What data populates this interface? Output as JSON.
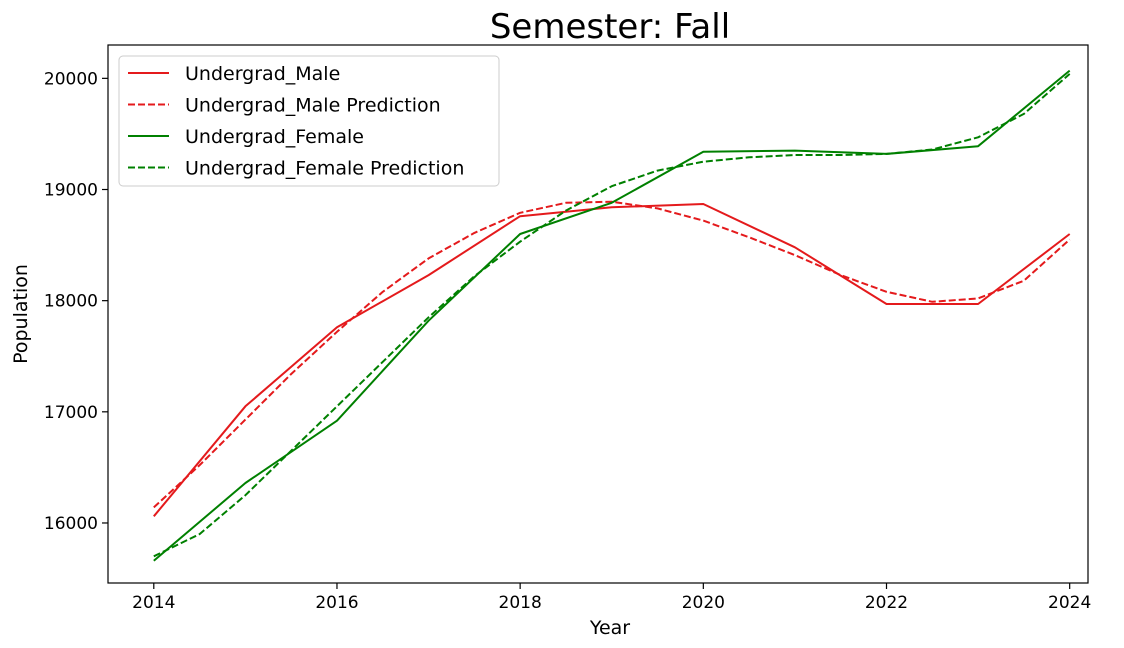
{
  "chart_data": {
    "type": "line",
    "title": "Semester: Fall",
    "xlabel": "Year",
    "ylabel": "Population",
    "xlim": [
      2013.5,
      2024.2
    ],
    "ylim": [
      15460,
      20300
    ],
    "xticks": [
      2014,
      2016,
      2018,
      2020,
      2022,
      2024
    ],
    "yticks": [
      16000,
      17000,
      18000,
      19000,
      20000
    ],
    "grid": false,
    "legend_position": "top-left",
    "series": [
      {
        "name": "Undergrad_Male",
        "color": "#e41a1c",
        "style": "solid",
        "x": [
          2014,
          2015,
          2016,
          2017,
          2018,
          2019,
          2020,
          2021,
          2022,
          2023,
          2024
        ],
        "y": [
          16060,
          17050,
          17760,
          18230,
          18760,
          18840,
          18870,
          18480,
          17970,
          17970,
          18600
        ]
      },
      {
        "name": "Undergrad_Male Prediction",
        "color": "#e41a1c",
        "style": "dashed",
        "x": [
          2014,
          2014.5,
          2015,
          2015.5,
          2016,
          2016.5,
          2017,
          2017.5,
          2018,
          2018.5,
          2019,
          2019.5,
          2020,
          2020.5,
          2021,
          2021.5,
          2022,
          2022.5,
          2023,
          2023.5,
          2024
        ],
        "y": [
          16140,
          16520,
          16930,
          17340,
          17720,
          18080,
          18380,
          18610,
          18790,
          18880,
          18890,
          18830,
          18720,
          18570,
          18410,
          18230,
          18080,
          17990,
          18020,
          18180,
          18550
        ]
      },
      {
        "name": "Undergrad_Female",
        "color": "#008000",
        "style": "solid",
        "x": [
          2014,
          2015,
          2016,
          2017,
          2018,
          2019,
          2020,
          2021,
          2022,
          2023,
          2024
        ],
        "y": [
          15660,
          16360,
          16920,
          17820,
          18600,
          18880,
          19340,
          19350,
          19320,
          19390,
          20070
        ]
      },
      {
        "name": "Undergrad_Female Prediction",
        "color": "#008000",
        "style": "dashed",
        "x": [
          2014,
          2014.5,
          2015,
          2015.5,
          2016,
          2016.5,
          2017,
          2017.5,
          2018,
          2018.5,
          2019,
          2019.5,
          2020,
          2020.5,
          2021,
          2021.5,
          2022,
          2022.5,
          2023,
          2023.5,
          2024
        ],
        "y": [
          15700,
          15900,
          16250,
          16650,
          17050,
          17450,
          17850,
          18220,
          18530,
          18810,
          19030,
          19170,
          19250,
          19290,
          19310,
          19310,
          19320,
          19360,
          19470,
          19680,
          20040
        ]
      }
    ]
  }
}
